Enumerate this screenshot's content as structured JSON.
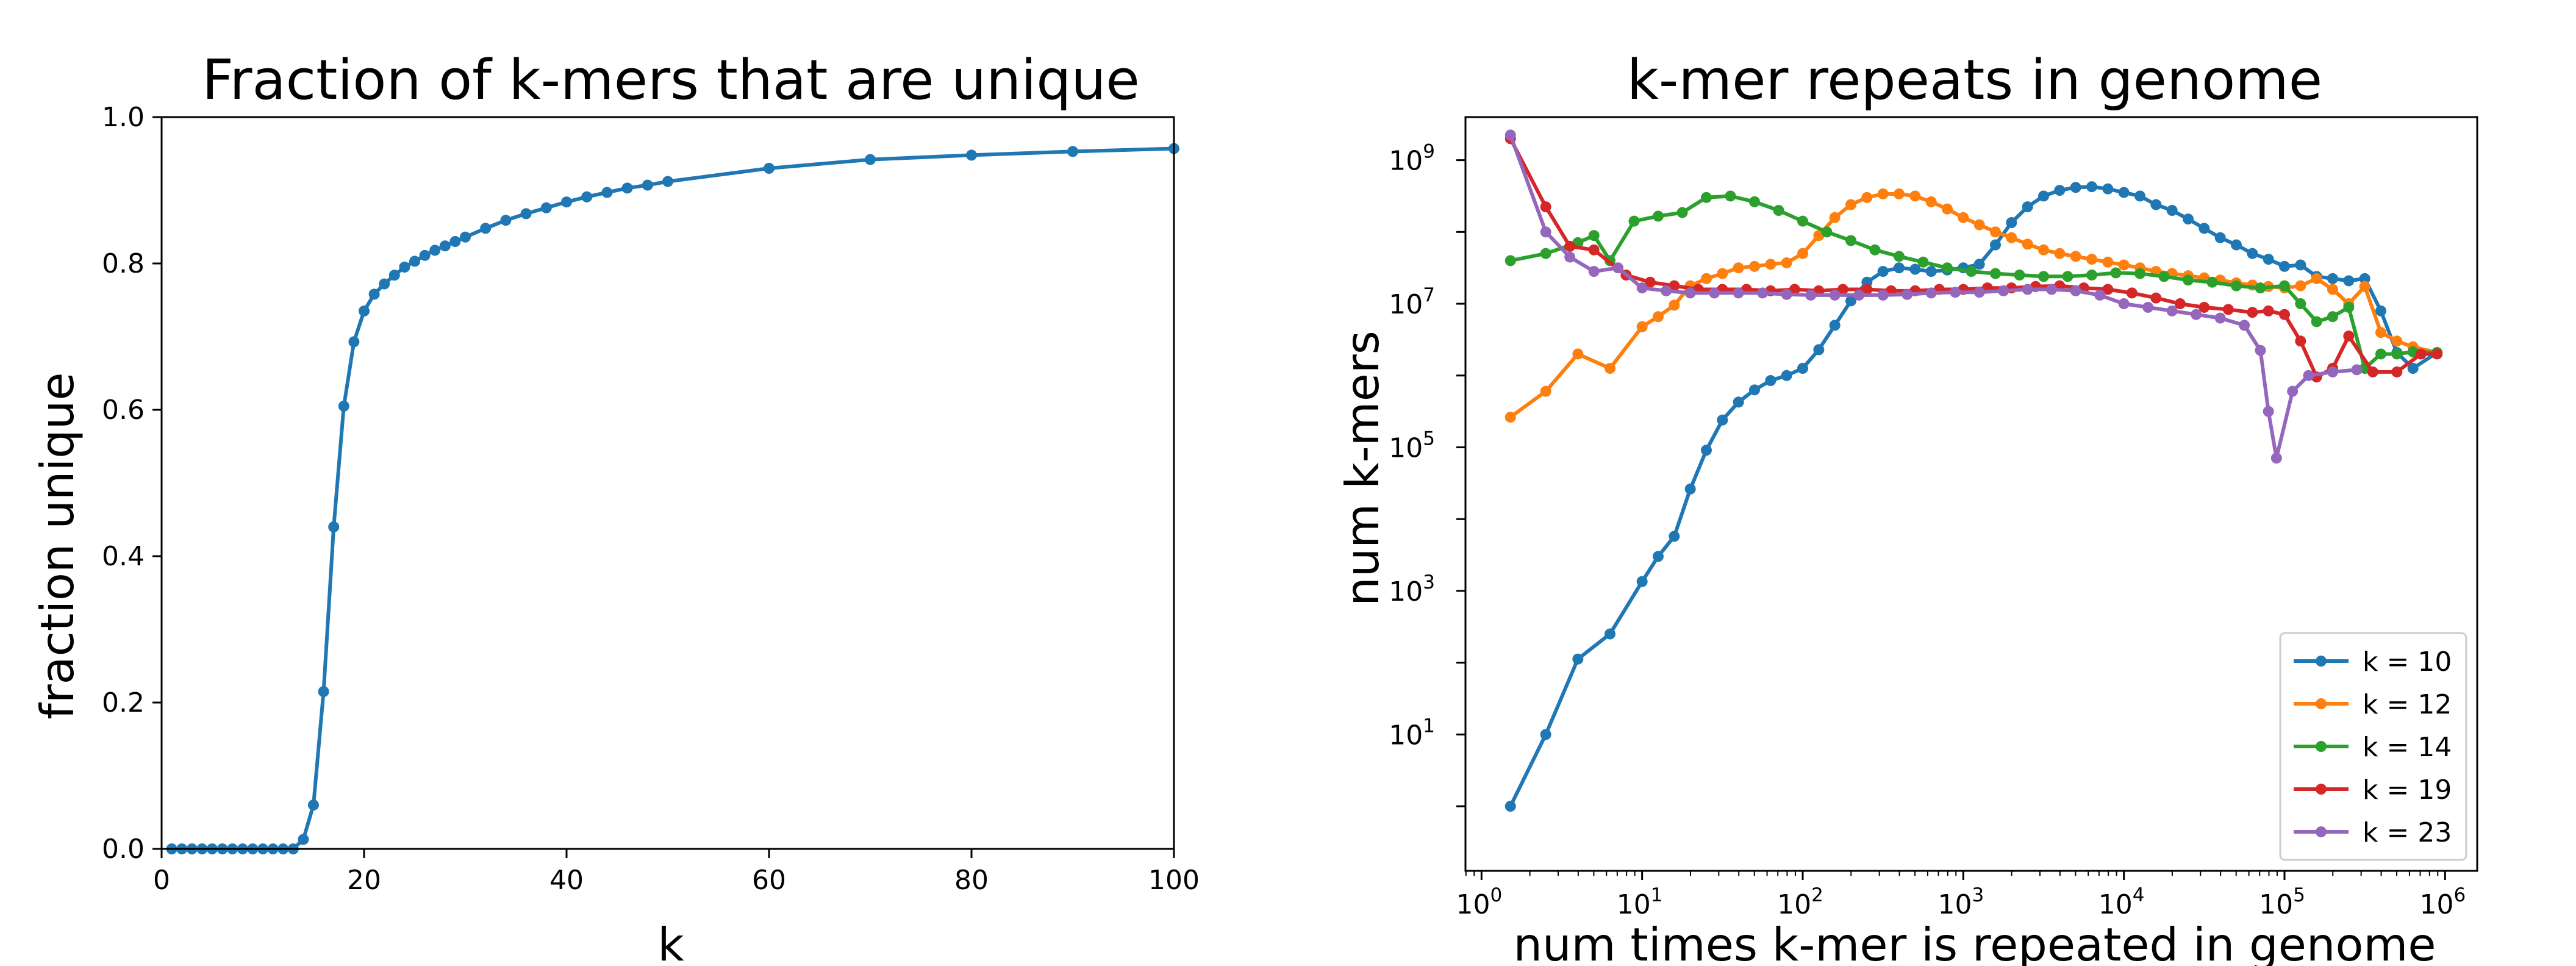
{
  "chart_data": [
    {
      "type": "line",
      "title": "Fraction of k-mers that are unique",
      "xlabel": "k",
      "ylabel": "fraction unique",
      "xlim": [
        0,
        100
      ],
      "ylim": [
        0,
        1
      ],
      "xticks": [
        "0",
        "20",
        "40",
        "60",
        "80",
        "100"
      ],
      "yticks": [
        "0.0",
        "0.2",
        "0.4",
        "0.6",
        "0.8",
        "1.0"
      ],
      "grid": false,
      "color": "#1f77b4",
      "x": [
        1,
        2,
        3,
        4,
        5,
        6,
        7,
        8,
        9,
        10,
        11,
        12,
        13,
        14,
        15,
        16,
        17,
        18,
        19,
        20,
        21,
        22,
        23,
        24,
        25,
        26,
        27,
        28,
        29,
        30,
        32,
        34,
        36,
        38,
        40,
        42,
        44,
        46,
        48,
        50,
        60,
        70,
        80,
        90,
        100
      ],
      "y": [
        0,
        0,
        0,
        0,
        0,
        0,
        0,
        0,
        0,
        0,
        0,
        0,
        0,
        0.013,
        0.06,
        0.215,
        0.44,
        0.605,
        0.693,
        0.735,
        0.758,
        0.772,
        0.784,
        0.795,
        0.803,
        0.811,
        0.818,
        0.824,
        0.83,
        0.836,
        0.848,
        0.859,
        0.868,
        0.876,
        0.884,
        0.891,
        0.897,
        0.903,
        0.907,
        0.912,
        0.93,
        0.942,
        0.948,
        0.953,
        0.957
      ]
    },
    {
      "type": "line",
      "title": "k-mer repeats in genome",
      "xlabel": "num times k-mer is repeated in genome",
      "ylabel": "num k-mers",
      "xscale": "log",
      "yscale": "log",
      "xlim_log10": [
        -0.1,
        6.2
      ],
      "ylim_log10": [
        -0.9,
        9.6
      ],
      "xtick_exponents": [
        "0",
        "1",
        "2",
        "3",
        "4",
        "5",
        "6"
      ],
      "ytick_exponents": [
        "1",
        "3",
        "5",
        "7",
        "9"
      ],
      "tick_base": "10",
      "grid": false,
      "legend_position": "lower-right",
      "series": [
        {
          "name": "k = 10",
          "color": "#1f77b4",
          "log10_x": [
            0.18,
            0.4,
            0.6,
            0.8,
            1.0,
            1.1,
            1.2,
            1.3,
            1.4,
            1.5,
            1.6,
            1.7,
            1.8,
            1.9,
            2.0,
            2.1,
            2.2,
            2.3,
            2.4,
            2.5,
            2.6,
            2.7,
            2.8,
            2.9,
            3.0,
            3.1,
            3.2,
            3.3,
            3.4,
            3.5,
            3.6,
            3.7,
            3.8,
            3.9,
            4.0,
            4.1,
            4.2,
            4.3,
            4.4,
            4.5,
            4.6,
            4.7,
            4.8,
            4.9,
            5.0,
            5.1,
            5.2,
            5.3,
            5.4,
            5.5,
            5.6,
            5.7,
            5.8,
            5.95
          ],
          "log10_y": [
            0.0,
            1.0,
            2.05,
            2.4,
            3.13,
            3.48,
            3.76,
            4.42,
            4.96,
            5.38,
            5.63,
            5.8,
            5.93,
            6.0,
            6.1,
            6.36,
            6.7,
            7.04,
            7.3,
            7.45,
            7.5,
            7.48,
            7.45,
            7.47,
            7.5,
            7.55,
            7.82,
            8.13,
            8.35,
            8.5,
            8.58,
            8.62,
            8.63,
            8.6,
            8.55,
            8.5,
            8.38,
            8.3,
            8.18,
            8.05,
            7.92,
            7.82,
            7.7,
            7.62,
            7.52,
            7.54,
            7.38,
            7.35,
            7.32,
            7.35,
            6.9,
            6.32,
            6.1,
            6.32
          ]
        },
        {
          "name": "k = 12",
          "color": "#ff7f0e",
          "log10_x": [
            0.18,
            0.4,
            0.6,
            0.8,
            1.0,
            1.1,
            1.2,
            1.3,
            1.4,
            1.5,
            1.6,
            1.7,
            1.8,
            1.9,
            2.0,
            2.1,
            2.2,
            2.3,
            2.4,
            2.5,
            2.6,
            2.7,
            2.8,
            2.9,
            3.0,
            3.1,
            3.2,
            3.3,
            3.4,
            3.5,
            3.6,
            3.7,
            3.8,
            3.9,
            4.0,
            4.1,
            4.2,
            4.3,
            4.4,
            4.5,
            4.6,
            4.7,
            4.8,
            4.9,
            5.0,
            5.1,
            5.2,
            5.3,
            5.4,
            5.5,
            5.6,
            5.7,
            5.8,
            5.95
          ],
          "log10_y": [
            5.42,
            5.78,
            6.3,
            6.1,
            6.68,
            6.82,
            6.98,
            7.25,
            7.35,
            7.42,
            7.5,
            7.52,
            7.55,
            7.57,
            7.7,
            7.95,
            8.2,
            8.38,
            8.48,
            8.53,
            8.53,
            8.5,
            8.42,
            8.32,
            8.2,
            8.1,
            8.0,
            7.92,
            7.83,
            7.75,
            7.7,
            7.66,
            7.62,
            7.58,
            7.54,
            7.5,
            7.45,
            7.42,
            7.39,
            7.36,
            7.33,
            7.29,
            7.26,
            7.24,
            7.22,
            7.25,
            7.35,
            7.2,
            7.0,
            7.24,
            6.6,
            6.48,
            6.4,
            6.32
          ]
        },
        {
          "name": "k = 14",
          "color": "#2ca02c",
          "log10_x": [
            0.18,
            0.4,
            0.6,
            0.7,
            0.8,
            0.95,
            1.1,
            1.25,
            1.4,
            1.55,
            1.7,
            1.85,
            2.0,
            2.15,
            2.3,
            2.45,
            2.6,
            2.75,
            2.9,
            3.05,
            3.2,
            3.35,
            3.5,
            3.65,
            3.8,
            3.95,
            4.1,
            4.25,
            4.4,
            4.55,
            4.7,
            4.85,
            5.0,
            5.1,
            5.2,
            5.3,
            5.4,
            5.5,
            5.6,
            5.7,
            5.8,
            5.95
          ],
          "log10_y": [
            7.6,
            7.7,
            7.85,
            7.95,
            7.6,
            8.15,
            8.22,
            8.27,
            8.48,
            8.5,
            8.42,
            8.3,
            8.15,
            8.0,
            7.88,
            7.75,
            7.66,
            7.58,
            7.5,
            7.45,
            7.42,
            7.4,
            7.38,
            7.38,
            7.4,
            7.43,
            7.42,
            7.38,
            7.33,
            7.3,
            7.25,
            7.22,
            7.25,
            7.0,
            6.75,
            6.82,
            6.95,
            6.1,
            6.3,
            6.3,
            6.33,
            6.32
          ]
        },
        {
          "name": "k = 19",
          "color": "#d62728",
          "log10_x": [
            0.18,
            0.4,
            0.55,
            0.7,
            0.9,
            1.05,
            1.2,
            1.35,
            1.5,
            1.65,
            1.8,
            1.95,
            2.1,
            2.25,
            2.4,
            2.55,
            2.7,
            2.85,
            3.0,
            3.15,
            3.3,
            3.45,
            3.6,
            3.75,
            3.9,
            4.05,
            4.2,
            4.35,
            4.5,
            4.65,
            4.8,
            4.9,
            5.0,
            5.1,
            5.2,
            5.3,
            5.4,
            5.55,
            5.7,
            5.85,
            5.95
          ],
          "log10_y": [
            9.3,
            8.35,
            7.8,
            7.75,
            7.4,
            7.3,
            7.25,
            7.2,
            7.2,
            7.2,
            7.18,
            7.2,
            7.18,
            7.2,
            7.2,
            7.18,
            7.18,
            7.2,
            7.2,
            7.22,
            7.22,
            7.24,
            7.25,
            7.22,
            7.2,
            7.15,
            7.08,
            7.0,
            6.95,
            6.92,
            6.88,
            6.9,
            6.85,
            6.48,
            5.98,
            6.1,
            6.55,
            6.05,
            6.05,
            6.3,
            6.3
          ]
        },
        {
          "name": "k = 23",
          "color": "#9467bd",
          "log10_x": [
            0.18,
            0.4,
            0.55,
            0.7,
            0.85,
            1.0,
            1.15,
            1.3,
            1.45,
            1.6,
            1.75,
            1.9,
            2.05,
            2.2,
            2.35,
            2.5,
            2.65,
            2.8,
            2.95,
            3.1,
            3.25,
            3.4,
            3.55,
            3.7,
            3.85,
            4.0,
            4.15,
            4.3,
            4.45,
            4.6,
            4.75,
            4.85,
            4.9,
            4.95,
            5.05,
            5.15,
            5.3,
            5.45
          ],
          "log10_y": [
            9.35,
            8.0,
            7.65,
            7.45,
            7.5,
            7.22,
            7.18,
            7.15,
            7.15,
            7.15,
            7.15,
            7.13,
            7.12,
            7.12,
            7.12,
            7.12,
            7.13,
            7.15,
            7.16,
            7.16,
            7.18,
            7.2,
            7.2,
            7.18,
            7.12,
            7.0,
            6.95,
            6.9,
            6.85,
            6.8,
            6.7,
            6.35,
            5.5,
            4.85,
            5.78,
            6.0,
            6.05,
            6.08
          ]
        }
      ]
    }
  ]
}
